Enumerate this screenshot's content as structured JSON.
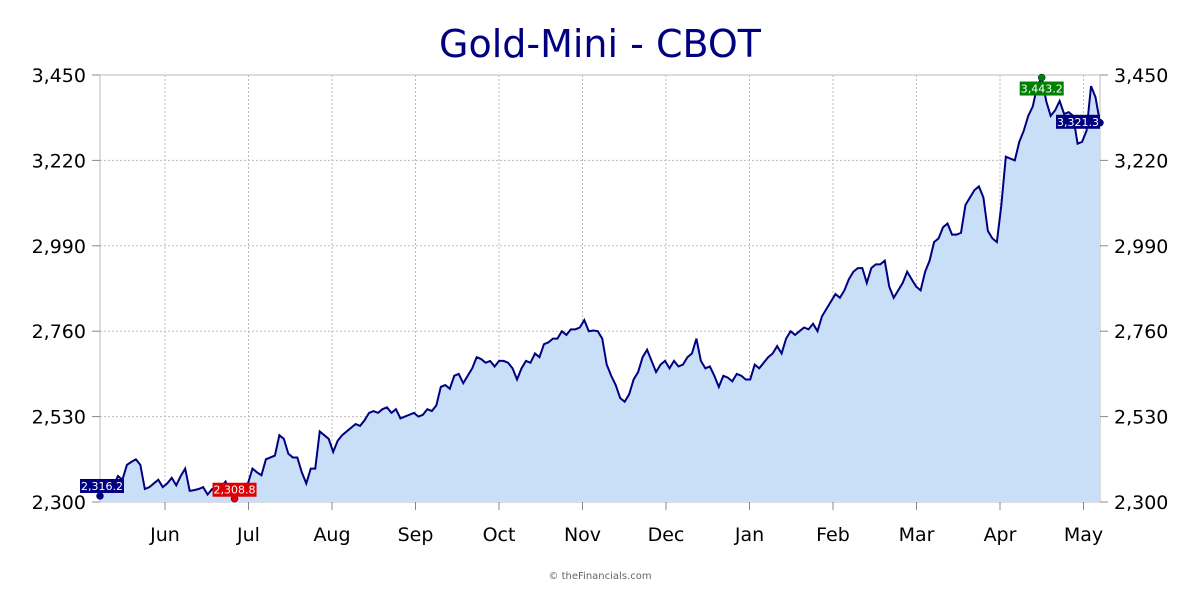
{
  "chart_data": {
    "type": "area",
    "title": "Gold-Mini - CBOT",
    "credit": "© theFinancials.com",
    "xlabel": "",
    "ylabel": "",
    "ylim": [
      2300,
      3450
    ],
    "y_ticks": [
      2300,
      2530,
      2760,
      2990,
      3220,
      3450
    ],
    "y_tick_labels": [
      "2,300",
      "2,530",
      "2,760",
      "2,990",
      "3,220",
      "3,450"
    ],
    "y_axis_both_sides": true,
    "grid": true,
    "months": [
      "Jun",
      "Jul",
      "Aug",
      "Sep",
      "Oct",
      "Nov",
      "Dec",
      "Jan",
      "Feb",
      "Mar",
      "Apr",
      "May"
    ],
    "colors": {
      "line": "#000080",
      "fill": "#c8dff7",
      "grid": "#bbbbbb",
      "high": "#008000",
      "low": "#dd0000",
      "last": "#000080"
    },
    "annotations": {
      "first": {
        "label": "2,316.2",
        "value": 2316.2
      },
      "low": {
        "label": "2,308.8",
        "value": 2308.8
      },
      "high": {
        "label": "3,443.2",
        "value": 3443.2
      },
      "last": {
        "label": "3,321.3",
        "value": 3321.3
      }
    },
    "series": [
      {
        "values": [
          2316.2,
          2355,
          2340,
          2342,
          2370,
          2360,
          2400,
          2408,
          2415,
          2400,
          2335,
          2340,
          2350,
          2360,
          2340,
          2350,
          2365,
          2345,
          2370,
          2390,
          2330,
          2332,
          2335,
          2340,
          2320,
          2335,
          2332,
          2340,
          2355,
          2325,
          2308.8,
          2328,
          2345,
          2350,
          2390,
          2380,
          2372,
          2415,
          2420,
          2425,
          2480,
          2470,
          2430,
          2420,
          2420,
          2380,
          2350,
          2390,
          2390,
          2490,
          2480,
          2470,
          2435,
          2465,
          2480,
          2490,
          2500,
          2510,
          2505,
          2520,
          2540,
          2545,
          2540,
          2550,
          2555,
          2540,
          2550,
          2525,
          2530,
          2535,
          2540,
          2530,
          2535,
          2550,
          2545,
          2560,
          2610,
          2615,
          2605,
          2640,
          2645,
          2620,
          2640,
          2660,
          2690,
          2685,
          2675,
          2680,
          2665,
          2680,
          2680,
          2675,
          2660,
          2630,
          2660,
          2680,
          2675,
          2700,
          2690,
          2725,
          2730,
          2740,
          2740,
          2760,
          2750,
          2765,
          2765,
          2770,
          2790,
          2760,
          2762,
          2760,
          2740,
          2670,
          2640,
          2615,
          2580,
          2570,
          2590,
          2630,
          2650,
          2690,
          2710,
          2680,
          2650,
          2670,
          2680,
          2660,
          2680,
          2665,
          2670,
          2690,
          2700,
          2740,
          2680,
          2660,
          2665,
          2640,
          2610,
          2640,
          2635,
          2625,
          2645,
          2640,
          2630,
          2630,
          2670,
          2660,
          2675,
          2690,
          2700,
          2720,
          2700,
          2740,
          2760,
          2750,
          2760,
          2770,
          2765,
          2780,
          2760,
          2800,
          2820,
          2840,
          2860,
          2850,
          2870,
          2900,
          2920,
          2930,
          2930,
          2890,
          2930,
          2940,
          2940,
          2950,
          2880,
          2850,
          2870,
          2890,
          2920,
          2900,
          2880,
          2870,
          2920,
          2950,
          3000,
          3010,
          3040,
          3050,
          3020,
          3020,
          3025,
          3100,
          3120,
          3140,
          3150,
          3120,
          3030,
          3010,
          3000,
          3100,
          3230,
          3225,
          3220,
          3270,
          3300,
          3340,
          3365,
          3420,
          3443.2,
          3380,
          3340,
          3355,
          3380,
          3345,
          3350,
          3340,
          3265,
          3270,
          3300,
          3420,
          3390,
          3321.3
        ]
      }
    ]
  }
}
